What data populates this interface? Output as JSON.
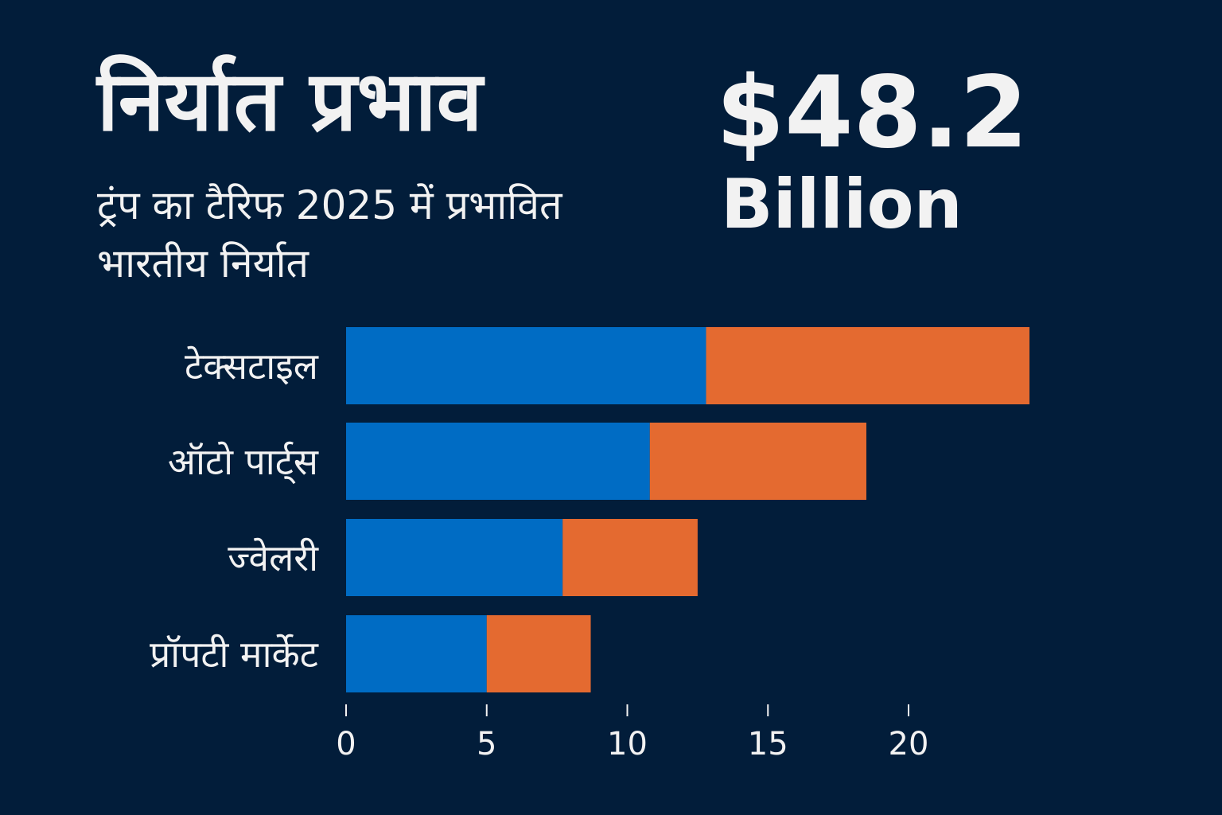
{
  "header": {
    "title": "निर्यात प्रभाव",
    "subtitle": "ट्रंप का टैरिफ 2025 में प्रभावित भारतीय निर्यात",
    "highlight_value": "$48.2",
    "highlight_unit": "Billion"
  },
  "colors": {
    "background": "#021d3a",
    "series1": "#006cc4",
    "series2": "#e46a30"
  },
  "chart_data": {
    "type": "bar",
    "orientation": "horizontal",
    "stacked": true,
    "categories": [
      "टेक्सटाइल",
      "ऑटो पार्ट्स",
      "ज्वेलरी",
      "प्रॉपटी मार्केट"
    ],
    "series": [
      {
        "values": [
          12.8,
          10.8,
          7.7,
          5.0
        ],
        "color": "#006cc4"
      },
      {
        "values": [
          11.5,
          7.7,
          4.8,
          3.7
        ],
        "color": "#e46a30"
      }
    ],
    "xlim": [
      0,
      25
    ],
    "xticks": [
      "0",
      "5",
      "10",
      "15",
      "20"
    ],
    "grid": false,
    "legend": "none"
  }
}
